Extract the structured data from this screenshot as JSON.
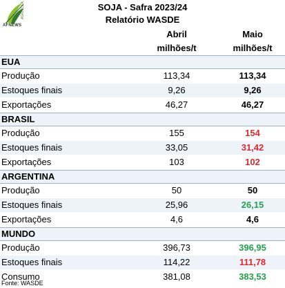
{
  "logo": {
    "brand": "AFNEWS",
    "tagline": "AGRICOLA"
  },
  "title": "SOJA - Safra 2023/24",
  "subtitle": "Relatório WASDE",
  "columns": {
    "abril": "Abril milhões/t",
    "maio": "Maio milhões/t"
  },
  "colors": {
    "red": "#e0282d",
    "green": "#22a34a",
    "black": "#000000"
  },
  "sections": [
    {
      "name": "EUA",
      "rows": [
        {
          "label": "Produção",
          "abril": "113,34",
          "maio": "113,34",
          "maio_color": "black"
        },
        {
          "label": "Estoques finais",
          "abril": "9,26",
          "maio": "9,26",
          "maio_color": "black"
        },
        {
          "label": "Exportações",
          "abril": "46,27",
          "maio": "46,27",
          "maio_color": "black"
        }
      ]
    },
    {
      "name": "BRASIL",
      "rows": [
        {
          "label": "Produção",
          "abril": "155",
          "maio": "154",
          "maio_color": "red"
        },
        {
          "label": "Estoques finais",
          "abril": "33,05",
          "maio": "31,42",
          "maio_color": "red"
        },
        {
          "label": "Exportações",
          "abril": "103",
          "maio": "102",
          "maio_color": "red"
        }
      ]
    },
    {
      "name": "ARGENTINA",
      "rows": [
        {
          "label": "Produção",
          "abril": "50",
          "maio": "50",
          "maio_color": "black"
        },
        {
          "label": "Estoques finais",
          "abril": "25,96",
          "maio": "26,15",
          "maio_color": "green"
        },
        {
          "label": "Exportações",
          "abril": "4,6",
          "maio": "4,6",
          "maio_color": "black"
        }
      ]
    },
    {
      "name": "MUNDO",
      "rows": [
        {
          "label": "Produção",
          "abril": "396,73",
          "maio": "396,95",
          "maio_color": "green"
        },
        {
          "label": "Estoques finais",
          "abril": "114,22",
          "maio": "111,78",
          "maio_color": "red"
        },
        {
          "label": "Consumo",
          "abril": "381,08",
          "maio": "383,53",
          "maio_color": "green"
        }
      ]
    }
  ],
  "footer": "Fonte: WASDE"
}
